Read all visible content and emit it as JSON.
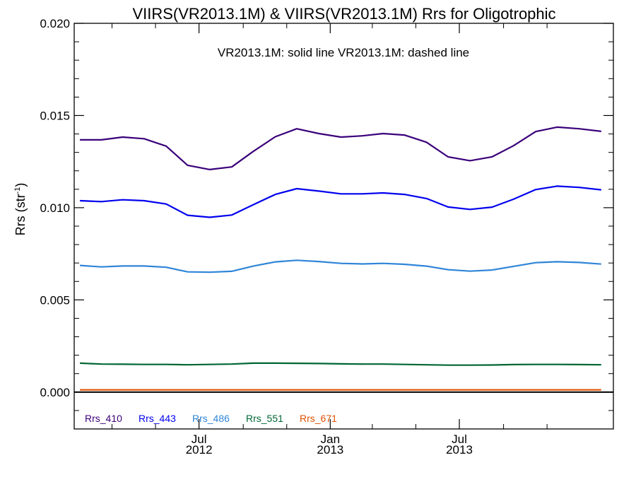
{
  "chart_data": {
    "type": "line",
    "title": "VIIRS(VR2013.1M) & VIIRS(VR2013.1M)  Rrs for Oligotrophic",
    "annotation": "VR2013.1M: solid line   VR2013.1M: dashed line",
    "ylabel": {
      "prefix": "Rrs (str",
      "exponent": "-1",
      "suffix": ")"
    },
    "xlabel": "",
    "ylim": [
      -0.002,
      0.02
    ],
    "y_ticks": [
      {
        "value": 0.0,
        "label": "0.000"
      },
      {
        "value": 0.005,
        "label": "0.005"
      },
      {
        "value": 0.01,
        "label": "0.010"
      },
      {
        "value": 0.015,
        "label": "0.015"
      },
      {
        "value": 0.02,
        "label": "0.020"
      }
    ],
    "y_minor_step": 0.001,
    "xlim": [
      "2012-01-08",
      "2014-02-02"
    ],
    "x_ticks": [
      {
        "value": "2012-07-01",
        "month": "Jul",
        "year": "2012"
      },
      {
        "value": "2013-01-01",
        "month": "Jan",
        "year": "2013"
      },
      {
        "value": "2013-07-01",
        "month": "Jul",
        "year": "2013"
      }
    ],
    "x_minor_ticks": [
      "2012-03-01",
      "2012-05-01",
      "2012-09-01",
      "2012-11-01",
      "2013-03-01",
      "2013-05-01",
      "2013-09-01",
      "2013-11-01"
    ],
    "x": [
      "2012-01-16",
      "2012-02-15",
      "2012-03-16",
      "2012-04-15",
      "2012-05-16",
      "2012-06-15",
      "2012-07-16",
      "2012-08-16",
      "2012-09-15",
      "2012-10-16",
      "2012-11-15",
      "2012-12-16",
      "2013-01-16",
      "2013-02-15",
      "2013-03-16",
      "2013-04-15",
      "2013-05-16",
      "2013-06-15",
      "2013-07-16",
      "2013-08-16",
      "2013-09-15",
      "2013-10-16",
      "2013-11-15",
      "2013-12-16",
      "2014-01-16"
    ],
    "series": [
      {
        "name": "Rrs_410",
        "color": "#3a007a",
        "values": [
          0.01368,
          0.01368,
          0.01383,
          0.01374,
          0.01334,
          0.0123,
          0.01207,
          0.01221,
          0.01305,
          0.01385,
          0.01428,
          0.01402,
          0.01383,
          0.0139,
          0.01402,
          0.01394,
          0.01355,
          0.01276,
          0.01255,
          0.01276,
          0.01336,
          0.01413,
          0.01437,
          0.01428,
          0.01414
        ]
      },
      {
        "name": "Rrs_443",
        "color": "#0000ee",
        "values": [
          0.01038,
          0.01033,
          0.01043,
          0.01038,
          0.0102,
          0.00959,
          0.00948,
          0.0096,
          0.01016,
          0.01072,
          0.01103,
          0.0109,
          0.01075,
          0.01075,
          0.0108,
          0.01072,
          0.0105,
          0.01004,
          0.00991,
          0.01003,
          0.01046,
          0.01098,
          0.01117,
          0.0111,
          0.01097
        ]
      },
      {
        "name": "Rrs_486",
        "color": "#2f85d8",
        "values": [
          0.00687,
          0.00679,
          0.00684,
          0.00684,
          0.00677,
          0.00652,
          0.0065,
          0.00655,
          0.00683,
          0.00706,
          0.00715,
          0.00708,
          0.00698,
          0.00695,
          0.00698,
          0.00693,
          0.00683,
          0.00664,
          0.00656,
          0.00662,
          0.00682,
          0.00702,
          0.00707,
          0.00703,
          0.00694
        ]
      },
      {
        "name": "Rrs_551",
        "color": "#006633",
        "values": [
          0.00157,
          0.00152,
          0.00151,
          0.0015,
          0.0015,
          0.00148,
          0.0015,
          0.00152,
          0.00157,
          0.00157,
          0.00156,
          0.00155,
          0.00153,
          0.00152,
          0.00152,
          0.0015,
          0.00148,
          0.00146,
          0.00146,
          0.00147,
          0.00149,
          0.0015,
          0.0015,
          0.00149,
          0.00148
        ]
      },
      {
        "name": "Rrs_671",
        "color": "#e05000",
        "values": [
          0.00012,
          0.00012,
          0.00012,
          0.00012,
          0.00012,
          0.00012,
          0.00012,
          0.00012,
          0.00012,
          0.00012,
          0.00012,
          0.00012,
          0.00012,
          0.00012,
          0.00012,
          0.00012,
          0.00012,
          0.00012,
          0.00012,
          0.00012,
          0.00012,
          0.00012,
          0.00012,
          0.00012,
          0.00012
        ]
      }
    ],
    "reference_line": {
      "value": 0.0,
      "color": "#000000"
    },
    "legend_placement": "bottom-left",
    "grid": false
  }
}
